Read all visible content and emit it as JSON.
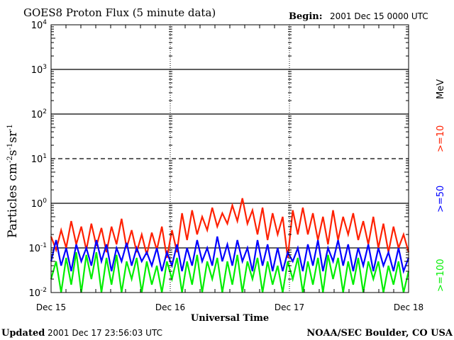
{
  "chart_data": {
    "type": "line",
    "title": "GOES8 Proton Flux (5 minute data)",
    "begin_label": "Begin:",
    "begin_value": "2001 Dec 15 0000 UTC",
    "xlabel": "Universal Time",
    "ylabel": "Particles cm",
    "ylabel_parts": [
      "Particles cm",
      "-2",
      "s",
      "-1",
      "sr",
      "-1"
    ],
    "x_tick_labels": [
      "Dec 15",
      "Dec 16",
      "Dec 17",
      "Dec 18"
    ],
    "x_range_hours": [
      0,
      72
    ],
    "y_scale": "log",
    "ylim": [
      0.01,
      10000
    ],
    "y_tick_labels": [
      {
        "base": "10",
        "exp": "4"
      },
      {
        "base": "10",
        "exp": "3"
      },
      {
        "base": "10",
        "exp": "2"
      },
      {
        "base": "10",
        "exp": "1"
      },
      {
        "base": "10",
        "exp": "0"
      },
      {
        "base": "10",
        "exp": "-1"
      },
      {
        "base": "10",
        "exp": "-2"
      }
    ],
    "legend": {
      "unit": "MeV",
      "placement": "right"
    },
    "series": [
      {
        "name": ">=10",
        "color": "#ff2000",
        "values": [
          0.18,
          0.09,
          0.25,
          0.1,
          0.4,
          0.12,
          0.3,
          0.09,
          0.35,
          0.11,
          0.28,
          0.08,
          0.3,
          0.12,
          0.45,
          0.1,
          0.25,
          0.08,
          0.2,
          0.07,
          0.22,
          0.09,
          0.3,
          0.06,
          0.25,
          0.08,
          0.6,
          0.15,
          0.7,
          0.2,
          0.5,
          0.25,
          0.8,
          0.3,
          0.6,
          0.35,
          0.9,
          0.4,
          1.3,
          0.35,
          0.7,
          0.2,
          0.8,
          0.15,
          0.6,
          0.2,
          0.5,
          0.06,
          0.7,
          0.2,
          0.8,
          0.2,
          0.6,
          0.15,
          0.5,
          0.12,
          0.7,
          0.15,
          0.5,
          0.2,
          0.6,
          0.15,
          0.4,
          0.12,
          0.5,
          0.1,
          0.35,
          0.08,
          0.3,
          0.1,
          0.2,
          0.08
        ]
      },
      {
        "name": ">=50",
        "color": "#0000ff",
        "values": [
          0.05,
          0.15,
          0.04,
          0.1,
          0.03,
          0.12,
          0.05,
          0.1,
          0.04,
          0.15,
          0.05,
          0.12,
          0.03,
          0.1,
          0.05,
          0.13,
          0.04,
          0.1,
          0.05,
          0.08,
          0.04,
          0.1,
          0.03,
          0.08,
          0.04,
          0.12,
          0.03,
          0.1,
          0.04,
          0.15,
          0.05,
          0.1,
          0.04,
          0.18,
          0.05,
          0.12,
          0.04,
          0.15,
          0.05,
          0.1,
          0.03,
          0.15,
          0.04,
          0.12,
          0.03,
          0.1,
          0.03,
          0.08,
          0.05,
          0.1,
          0.03,
          0.12,
          0.04,
          0.15,
          0.03,
          0.1,
          0.05,
          0.15,
          0.04,
          0.12,
          0.03,
          0.1,
          0.04,
          0.12,
          0.03,
          0.1,
          0.04,
          0.08,
          0.03,
          0.1,
          0.03,
          0.06
        ]
      },
      {
        "name": ">=100",
        "color": "#00ee00",
        "values": [
          0.02,
          0.05,
          0.01,
          0.06,
          0.015,
          0.08,
          0.01,
          0.07,
          0.02,
          0.08,
          0.01,
          0.06,
          0.015,
          0.07,
          0.01,
          0.05,
          0.02,
          0.06,
          0.01,
          0.05,
          0.015,
          0.04,
          0.01,
          0.05,
          0.02,
          0.06,
          0.01,
          0.05,
          0.015,
          0.07,
          0.01,
          0.05,
          0.02,
          0.06,
          0.01,
          0.05,
          0.015,
          0.07,
          0.01,
          0.05,
          0.02,
          0.06,
          0.01,
          0.05,
          0.015,
          0.04,
          0.01,
          0.05,
          0.02,
          0.06,
          0.01,
          0.05,
          0.015,
          0.06,
          0.01,
          0.07,
          0.02,
          0.06,
          0.01,
          0.05,
          0.015,
          0.06,
          0.01,
          0.05,
          0.02,
          0.05,
          0.01,
          0.04,
          0.015,
          0.05,
          0.01,
          0.03
        ]
      }
    ]
  },
  "footer": {
    "updated_label": "Updated",
    "updated_value": "2001 Dec 17 23:56:03 UTC",
    "credit": "NOAA/SEC Boulder, CO USA"
  }
}
